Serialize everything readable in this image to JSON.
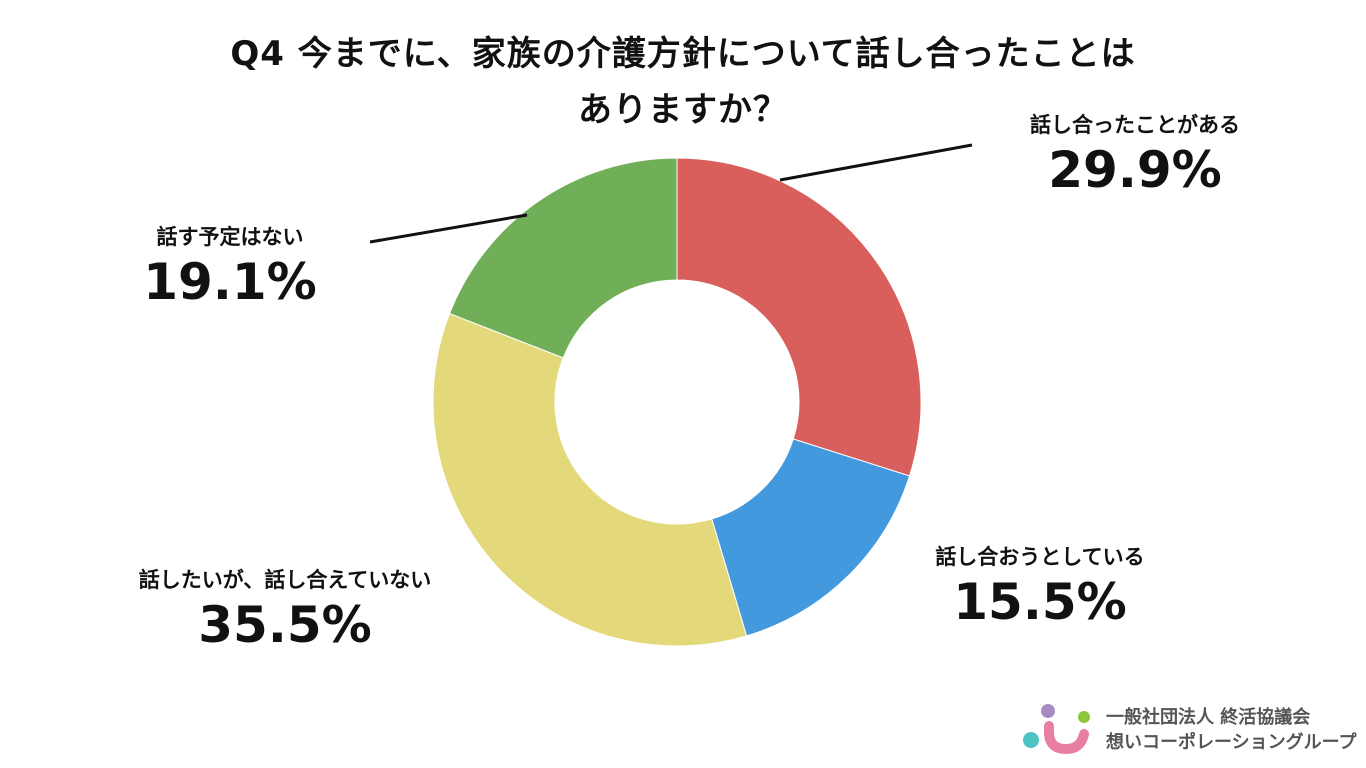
{
  "chart_data": {
    "type": "pie",
    "title_lines": [
      "Q4 今までに、家族の介護方針について話し合ったことは",
      "ありますか？"
    ],
    "slices": [
      {
        "label": "話し合ったことがある",
        "value": 29.9,
        "value_label": "29.9%",
        "color": "#d95f5c"
      },
      {
        "label": "話し合おうとしている",
        "value": 15.5,
        "value_label": "15.5%",
        "color": "#4299dd"
      },
      {
        "label": "話したいが、話し合えていない",
        "value": 35.5,
        "value_label": "35.5%",
        "color": "#e4d97a"
      },
      {
        "label": "話す予定はない",
        "value": 19.1,
        "value_label": "19.1%",
        "color": "#70ae57"
      }
    ],
    "donut": true
  },
  "logo": {
    "line1": "一般社団法人 終活協議会",
    "line2": "想いコーポレーショングループ",
    "colors": [
      "#a98bc2",
      "#8cc63f",
      "#4fc3c3",
      "#e87ea1"
    ]
  }
}
